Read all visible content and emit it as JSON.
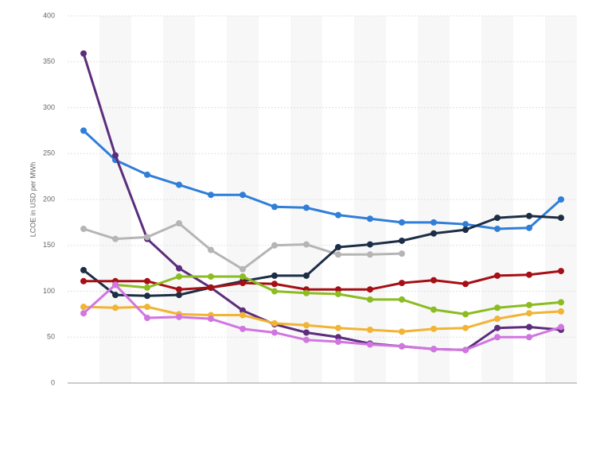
{
  "chart_data": {
    "type": "line",
    "y_label": "LCOE in USD per MWh",
    "categories": [
      null,
      null,
      null,
      null,
      null,
      null,
      null,
      null,
      null,
      null,
      null,
      null,
      null,
      null,
      null,
      null
    ],
    "ylim": [
      0,
      400
    ],
    "yticks": [
      0,
      50,
      100,
      150,
      200,
      250,
      300,
      350,
      400
    ],
    "grid": true,
    "series": [
      {
        "color": "#2f7ed8",
        "values": [
          275,
          243,
          227,
          216,
          205,
          205,
          192,
          191,
          183,
          179,
          175,
          175,
          173,
          168,
          169,
          200
        ]
      },
      {
        "color": "#5c2d7c",
        "values": [
          359,
          248,
          157,
          125,
          104,
          79,
          64,
          55,
          50,
          43,
          40,
          37,
          36,
          60,
          61,
          58
        ]
      },
      {
        "color": "#b5b5b5",
        "values": [
          168,
          157,
          159,
          174,
          145,
          124,
          150,
          151,
          140,
          140,
          141,
          null,
          null,
          null,
          null,
          null
        ]
      },
      {
        "color": "#1c2e45",
        "values": [
          123,
          96,
          95,
          96,
          104,
          111,
          117,
          117,
          148,
          151,
          155,
          163,
          167,
          180,
          182,
          180
        ]
      },
      {
        "color": "#a50f15",
        "values": [
          111,
          111,
          111,
          102,
          104,
          109,
          108,
          102,
          102,
          102,
          109,
          112,
          108,
          117,
          118,
          122
        ]
      },
      {
        "color": "#8bbc21",
        "values": [
          null,
          107,
          104,
          116,
          116,
          116,
          100,
          98,
          97,
          91,
          91,
          80,
          75,
          82,
          85,
          88
        ]
      },
      {
        "color": "#f1b434",
        "values": [
          83,
          82,
          83,
          75,
          74,
          74,
          65,
          63,
          60,
          58,
          56,
          59,
          60,
          70,
          76,
          78
        ]
      },
      {
        "color": "#d175e0",
        "values": [
          76,
          107,
          71,
          72,
          70,
          59,
          55,
          47,
          45,
          42,
          40,
          37,
          36,
          50,
          50,
          61
        ]
      }
    ]
  }
}
